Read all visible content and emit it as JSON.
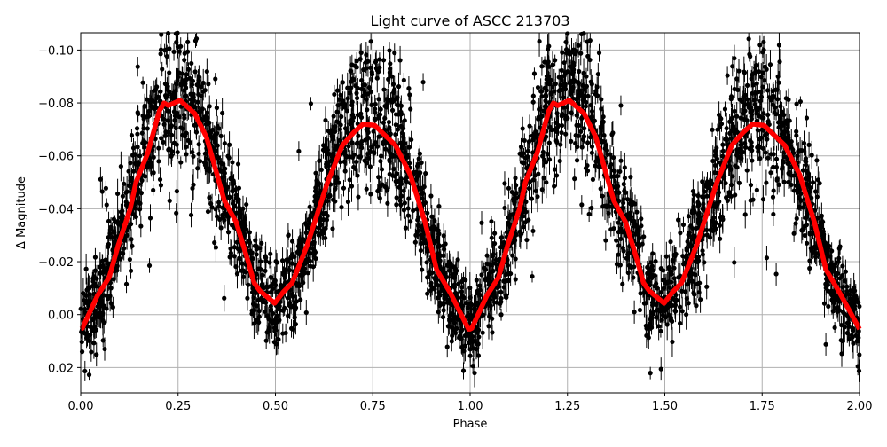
{
  "chart_data": {
    "type": "scatter",
    "title": "Light curve of ASCC 213703",
    "xlabel": "Phase",
    "ylabel": "Δ Magnitude",
    "xlim": [
      0,
      2
    ],
    "ylim": [
      0.0296,
      -0.1065
    ],
    "y_inverted": true,
    "grid": true,
    "xticks": [
      "0.00",
      "0.25",
      "0.50",
      "0.75",
      "1.00",
      "1.25",
      "1.50",
      "1.75",
      "2.00"
    ],
    "xtick_values": [
      0,
      0.25,
      0.5,
      0.75,
      1,
      1.25,
      1.5,
      1.75,
      2
    ],
    "yticks": [
      "−0.10",
      "−0.08",
      "−0.06",
      "−0.04",
      "−0.02",
      "0.00",
      "0.02"
    ],
    "ytick_values": [
      -0.1,
      -0.08,
      -0.06,
      -0.04,
      -0.02,
      0.0,
      0.02
    ],
    "colors": {
      "points": "#000000",
      "model": "#ff0000",
      "grid": "#b0b0b0"
    },
    "model_curve": {
      "x": [
        0.0,
        0.004,
        0.043,
        0.073,
        0.096,
        0.127,
        0.142,
        0.172,
        0.202,
        0.214,
        0.225,
        0.255,
        0.293,
        0.323,
        0.369,
        0.399,
        0.43,
        0.445,
        0.46,
        0.498,
        0.52,
        0.543,
        0.581,
        0.634,
        0.672,
        0.702,
        0.725,
        0.755,
        0.808,
        0.846,
        0.884,
        0.914,
        0.95,
        0.996,
        1.0,
        1.004,
        1.043,
        1.073,
        1.096,
        1.127,
        1.142,
        1.172,
        1.202,
        1.214,
        1.225,
        1.255,
        1.293,
        1.323,
        1.369,
        1.399,
        1.43,
        1.445,
        1.46,
        1.498,
        1.52,
        1.543,
        1.581,
        1.634,
        1.672,
        1.702,
        1.725,
        1.755,
        1.808,
        1.846,
        1.884,
        1.914,
        1.95,
        2.0
      ],
      "y": [
        0.0055,
        0.0052,
        -0.0072,
        -0.014,
        -0.026,
        -0.04,
        -0.05,
        -0.061,
        -0.077,
        -0.08,
        -0.079,
        -0.081,
        -0.076,
        -0.067,
        -0.043,
        -0.035,
        -0.02,
        -0.012,
        -0.009,
        -0.0043,
        -0.0085,
        -0.012,
        -0.026,
        -0.05,
        -0.064,
        -0.069,
        -0.072,
        -0.0715,
        -0.064,
        -0.053,
        -0.035,
        -0.017,
        -0.008,
        0.0055,
        0.0055,
        0.0052,
        -0.0072,
        -0.014,
        -0.026,
        -0.04,
        -0.05,
        -0.061,
        -0.077,
        -0.08,
        -0.079,
        -0.081,
        -0.076,
        -0.067,
        -0.043,
        -0.035,
        -0.02,
        -0.012,
        -0.009,
        -0.0043,
        -0.0085,
        -0.012,
        -0.026,
        -0.05,
        -0.064,
        -0.069,
        -0.072,
        -0.0715,
        -0.064,
        -0.053,
        -0.035,
        -0.017,
        -0.008,
        0.0055
      ]
    }
  }
}
